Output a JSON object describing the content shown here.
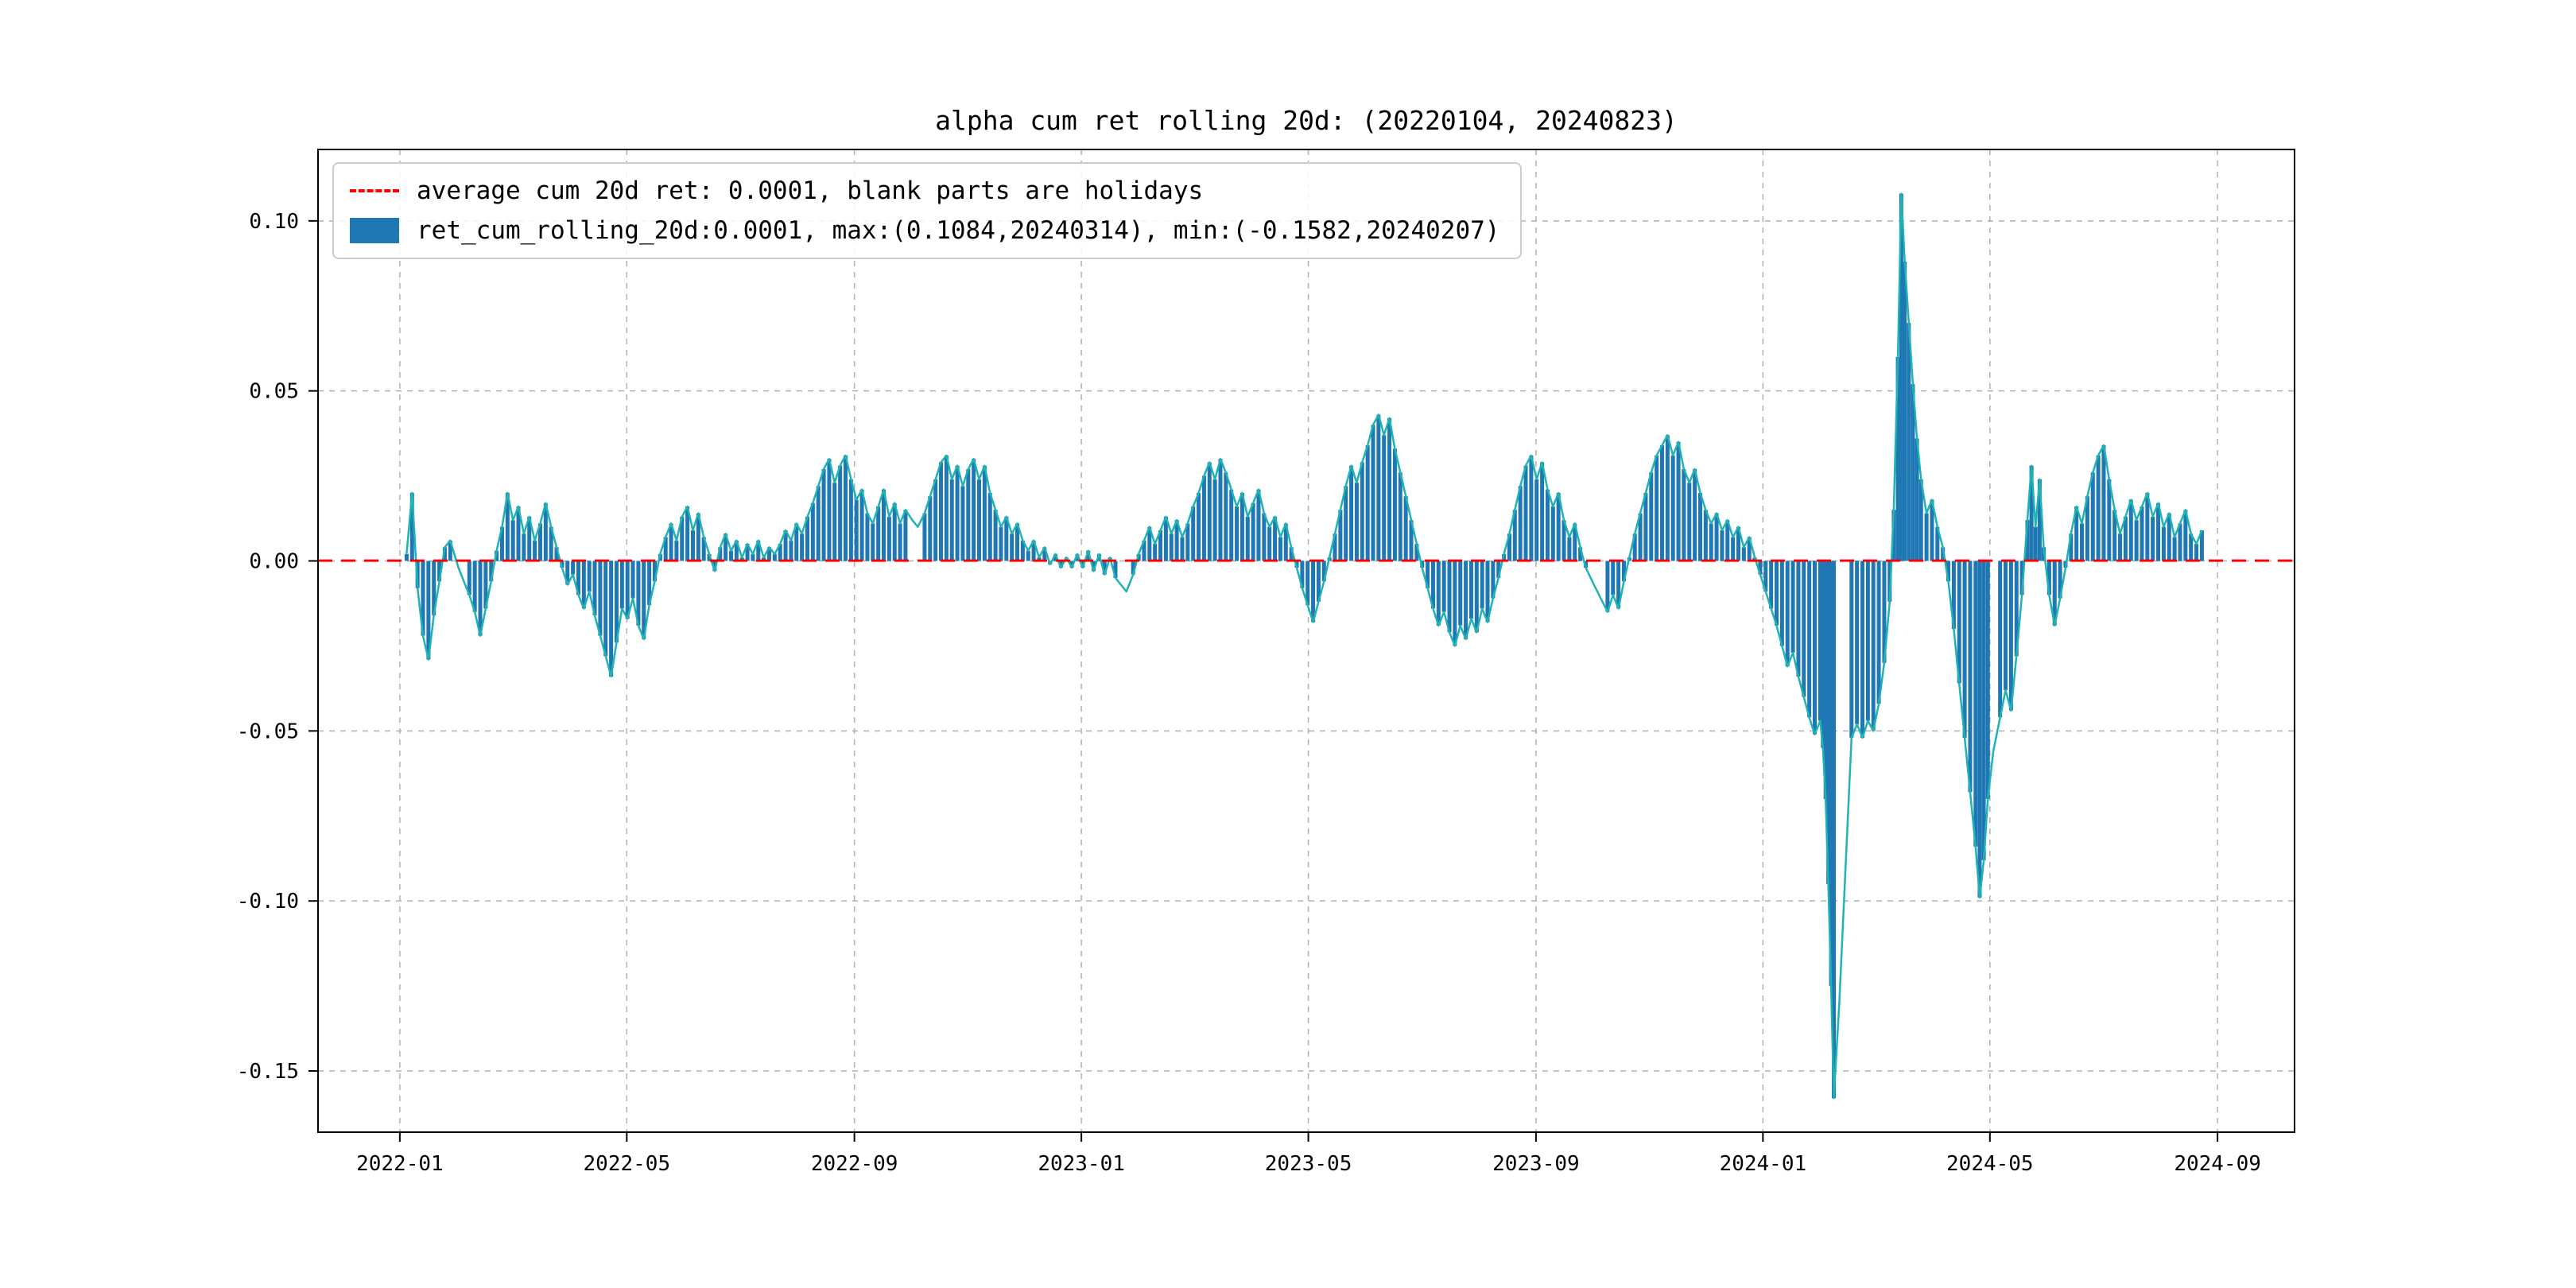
{
  "title": "alpha cum ret rolling 20d: (20220104, 20240823)",
  "legend": {
    "avg_label": "average cum 20d ret: 0.0001, blank parts are holidays",
    "series_label": "ret_cum_rolling_20d:0.0001, max:(0.1084,20240314), min:(-0.1582,20240207)"
  },
  "colors": {
    "bar": "#1f77b4",
    "line": "#1fb3b3",
    "avg_line": "#ff0000",
    "grid": "#b0b0b0",
    "axis": "#000000",
    "text": "#000000"
  },
  "chart_data": {
    "type": "bar",
    "title": "alpha cum ret rolling 20d: (20220104, 20240823)",
    "series_name": "ret_cum_rolling_20d",
    "average": 0.0001,
    "max": {
      "value": 0.1084,
      "date": "20240314"
    },
    "min": {
      "value": -0.1582,
      "date": "20240207"
    },
    "xlim": [
      2021.88,
      2024.78
    ],
    "ylim": [
      -0.168,
      0.121
    ],
    "grid": true,
    "legend_position": "upper-left",
    "x_ticks": [
      {
        "v": 2022.0,
        "label": "2022-01"
      },
      {
        "v": 2022.333,
        "label": "2022-05"
      },
      {
        "v": 2022.667,
        "label": "2022-09"
      },
      {
        "v": 2023.0,
        "label": "2023-01"
      },
      {
        "v": 2023.333,
        "label": "2023-05"
      },
      {
        "v": 2023.667,
        "label": "2023-09"
      },
      {
        "v": 2024.0,
        "label": "2024-01"
      },
      {
        "v": 2024.333,
        "label": "2024-05"
      },
      {
        "v": 2024.667,
        "label": "2024-09"
      }
    ],
    "y_ticks": [
      {
        "v": 0.1,
        "label": "0.10"
      },
      {
        "v": 0.05,
        "label": "0.05"
      },
      {
        "v": 0.0,
        "label": "0.00"
      },
      {
        "v": -0.05,
        "label": "-0.05"
      },
      {
        "v": -0.1,
        "label": "-0.10"
      },
      {
        "v": -0.15,
        "label": "-0.15"
      }
    ],
    "holiday_gaps": [
      [
        2022.078,
        2022.098
      ],
      [
        2022.746,
        2022.768
      ],
      [
        2023.053,
        2023.075
      ],
      [
        2023.745,
        2023.77
      ],
      [
        2024.106,
        2024.128
      ],
      [
        2024.333,
        2024.346
      ]
    ],
    "points": [
      [
        2022.01,
        0.002
      ],
      [
        2022.018,
        0.02
      ],
      [
        2022.026,
        -0.008
      ],
      [
        2022.034,
        -0.022
      ],
      [
        2022.042,
        -0.029
      ],
      [
        2022.05,
        -0.016
      ],
      [
        2022.058,
        -0.006
      ],
      [
        2022.066,
        0.004
      ],
      [
        2022.074,
        0.006
      ],
      [
        2022.086,
        -0.002
      ],
      [
        2022.094,
        -0.006
      ],
      [
        2022.102,
        -0.01
      ],
      [
        2022.11,
        -0.015
      ],
      [
        2022.118,
        -0.022
      ],
      [
        2022.126,
        -0.014
      ],
      [
        2022.134,
        -0.006
      ],
      [
        2022.142,
        0.003
      ],
      [
        2022.15,
        0.01
      ],
      [
        2022.158,
        0.02
      ],
      [
        2022.166,
        0.012
      ],
      [
        2022.174,
        0.016
      ],
      [
        2022.182,
        0.008
      ],
      [
        2022.19,
        0.013
      ],
      [
        2022.198,
        0.006
      ],
      [
        2022.206,
        0.011
      ],
      [
        2022.214,
        0.017
      ],
      [
        2022.222,
        0.01
      ],
      [
        2022.23,
        0.004
      ],
      [
        2022.238,
        -0.002
      ],
      [
        2022.246,
        -0.007
      ],
      [
        2022.254,
        -0.004
      ],
      [
        2022.262,
        -0.01
      ],
      [
        2022.27,
        -0.014
      ],
      [
        2022.278,
        -0.009
      ],
      [
        2022.286,
        -0.016
      ],
      [
        2022.294,
        -0.022
      ],
      [
        2022.302,
        -0.028
      ],
      [
        2022.31,
        -0.034
      ],
      [
        2022.318,
        -0.024
      ],
      [
        2022.326,
        -0.014
      ],
      [
        2022.334,
        -0.017
      ],
      [
        2022.342,
        -0.011
      ],
      [
        2022.35,
        -0.019
      ],
      [
        2022.358,
        -0.023
      ],
      [
        2022.366,
        -0.013
      ],
      [
        2022.374,
        -0.006
      ],
      [
        2022.382,
        0.002
      ],
      [
        2022.39,
        0.007
      ],
      [
        2022.398,
        0.011
      ],
      [
        2022.406,
        0.006
      ],
      [
        2022.414,
        0.013
      ],
      [
        2022.422,
        0.016
      ],
      [
        2022.43,
        0.009
      ],
      [
        2022.438,
        0.014
      ],
      [
        2022.446,
        0.007
      ],
      [
        2022.454,
        0.002
      ],
      [
        2022.462,
        -0.003
      ],
      [
        2022.47,
        0.004
      ],
      [
        2022.478,
        0.008
      ],
      [
        2022.486,
        0.003
      ],
      [
        2022.494,
        0.006
      ],
      [
        2022.502,
        0.001
      ],
      [
        2022.51,
        0.005
      ],
      [
        2022.518,
        0.002
      ],
      [
        2022.526,
        0.006
      ],
      [
        2022.534,
        0.001
      ],
      [
        2022.542,
        0.004
      ],
      [
        2022.55,
        0.002
      ],
      [
        2022.558,
        0.005
      ],
      [
        2022.566,
        0.009
      ],
      [
        2022.574,
        0.006
      ],
      [
        2022.582,
        0.011
      ],
      [
        2022.59,
        0.008
      ],
      [
        2022.598,
        0.013
      ],
      [
        2022.606,
        0.017
      ],
      [
        2022.614,
        0.022
      ],
      [
        2022.622,
        0.027
      ],
      [
        2022.63,
        0.03
      ],
      [
        2022.638,
        0.023
      ],
      [
        2022.646,
        0.028
      ],
      [
        2022.654,
        0.031
      ],
      [
        2022.662,
        0.024
      ],
      [
        2022.67,
        0.018
      ],
      [
        2022.678,
        0.021
      ],
      [
        2022.686,
        0.014
      ],
      [
        2022.694,
        0.011
      ],
      [
        2022.702,
        0.016
      ],
      [
        2022.71,
        0.021
      ],
      [
        2022.718,
        0.013
      ],
      [
        2022.726,
        0.017
      ],
      [
        2022.734,
        0.011
      ],
      [
        2022.742,
        0.015
      ],
      [
        2022.752,
        0.012
      ],
      [
        2022.76,
        0.01
      ],
      [
        2022.77,
        0.014
      ],
      [
        2022.778,
        0.019
      ],
      [
        2022.786,
        0.024
      ],
      [
        2022.794,
        0.029
      ],
      [
        2022.802,
        0.031
      ],
      [
        2022.81,
        0.024
      ],
      [
        2022.818,
        0.028
      ],
      [
        2022.826,
        0.022
      ],
      [
        2022.834,
        0.027
      ],
      [
        2022.842,
        0.03
      ],
      [
        2022.85,
        0.024
      ],
      [
        2022.858,
        0.028
      ],
      [
        2022.866,
        0.02
      ],
      [
        2022.874,
        0.015
      ],
      [
        2022.882,
        0.01
      ],
      [
        2022.89,
        0.013
      ],
      [
        2022.898,
        0.008
      ],
      [
        2022.906,
        0.011
      ],
      [
        2022.914,
        0.006
      ],
      [
        2022.922,
        0.003
      ],
      [
        2022.93,
        0.006
      ],
      [
        2022.938,
        0.001
      ],
      [
        2022.946,
        0.004
      ],
      [
        2022.954,
        -0.001
      ],
      [
        2022.962,
        0.002
      ],
      [
        2022.97,
        -0.002
      ],
      [
        2022.978,
        0.001
      ],
      [
        2022.986,
        -0.002
      ],
      [
        2022.994,
        0.002
      ],
      [
        2023.002,
        -0.002
      ],
      [
        2023.01,
        0.003
      ],
      [
        2023.018,
        -0.003
      ],
      [
        2023.026,
        0.002
      ],
      [
        2023.034,
        -0.004
      ],
      [
        2023.042,
        0.001
      ],
      [
        2023.05,
        -0.005
      ],
      [
        2023.058,
        -0.007
      ],
      [
        2023.066,
        -0.009
      ],
      [
        2023.076,
        -0.004
      ],
      [
        2023.084,
        0.002
      ],
      [
        2023.092,
        0.006
      ],
      [
        2023.1,
        0.01
      ],
      [
        2023.108,
        0.005
      ],
      [
        2023.116,
        0.009
      ],
      [
        2023.124,
        0.013
      ],
      [
        2023.132,
        0.008
      ],
      [
        2023.14,
        0.012
      ],
      [
        2023.148,
        0.007
      ],
      [
        2023.156,
        0.011
      ],
      [
        2023.164,
        0.016
      ],
      [
        2023.172,
        0.02
      ],
      [
        2023.18,
        0.025
      ],
      [
        2023.188,
        0.029
      ],
      [
        2023.196,
        0.024
      ],
      [
        2023.204,
        0.03
      ],
      [
        2023.212,
        0.026
      ],
      [
        2023.22,
        0.021
      ],
      [
        2023.228,
        0.016
      ],
      [
        2023.236,
        0.02
      ],
      [
        2023.244,
        0.013
      ],
      [
        2023.252,
        0.017
      ],
      [
        2023.26,
        0.021
      ],
      [
        2023.268,
        0.014
      ],
      [
        2023.276,
        0.01
      ],
      [
        2023.284,
        0.013
      ],
      [
        2023.292,
        0.007
      ],
      [
        2023.3,
        0.011
      ],
      [
        2023.308,
        0.004
      ],
      [
        2023.316,
        -0.002
      ],
      [
        2023.324,
        -0.008
      ],
      [
        2023.332,
        -0.013
      ],
      [
        2023.34,
        -0.018
      ],
      [
        2023.348,
        -0.012
      ],
      [
        2023.356,
        -0.006
      ],
      [
        2023.364,
        0.001
      ],
      [
        2023.372,
        0.008
      ],
      [
        2023.38,
        0.015
      ],
      [
        2023.388,
        0.022
      ],
      [
        2023.396,
        0.028
      ],
      [
        2023.404,
        0.023
      ],
      [
        2023.412,
        0.029
      ],
      [
        2023.42,
        0.034
      ],
      [
        2023.428,
        0.04
      ],
      [
        2023.436,
        0.043
      ],
      [
        2023.444,
        0.037
      ],
      [
        2023.452,
        0.042
      ],
      [
        2023.46,
        0.033
      ],
      [
        2023.468,
        0.026
      ],
      [
        2023.476,
        0.019
      ],
      [
        2023.484,
        0.012
      ],
      [
        2023.492,
        0.005
      ],
      [
        2023.5,
        -0.002
      ],
      [
        2023.508,
        -0.008
      ],
      [
        2023.516,
        -0.014
      ],
      [
        2023.524,
        -0.019
      ],
      [
        2023.532,
        -0.015
      ],
      [
        2023.54,
        -0.021
      ],
      [
        2023.548,
        -0.025
      ],
      [
        2023.556,
        -0.019
      ],
      [
        2023.564,
        -0.023
      ],
      [
        2023.572,
        -0.017
      ],
      [
        2023.58,
        -0.021
      ],
      [
        2023.588,
        -0.014
      ],
      [
        2023.596,
        -0.018
      ],
      [
        2023.604,
        -0.011
      ],
      [
        2023.612,
        -0.005
      ],
      [
        2023.62,
        0.002
      ],
      [
        2023.628,
        0.008
      ],
      [
        2023.636,
        0.015
      ],
      [
        2023.644,
        0.022
      ],
      [
        2023.652,
        0.028
      ],
      [
        2023.66,
        0.031
      ],
      [
        2023.668,
        0.024
      ],
      [
        2023.676,
        0.029
      ],
      [
        2023.684,
        0.021
      ],
      [
        2023.692,
        0.016
      ],
      [
        2023.7,
        0.02
      ],
      [
        2023.708,
        0.012
      ],
      [
        2023.716,
        0.007
      ],
      [
        2023.724,
        0.011
      ],
      [
        2023.732,
        0.004
      ],
      [
        2023.74,
        -0.002
      ],
      [
        2023.752,
        -0.007
      ],
      [
        2023.762,
        -0.011
      ],
      [
        2023.772,
        -0.015
      ],
      [
        2023.78,
        -0.01
      ],
      [
        2023.788,
        -0.014
      ],
      [
        2023.796,
        -0.006
      ],
      [
        2023.804,
        0.001
      ],
      [
        2023.812,
        0.008
      ],
      [
        2023.82,
        0.014
      ],
      [
        2023.828,
        0.02
      ],
      [
        2023.836,
        0.026
      ],
      [
        2023.844,
        0.031
      ],
      [
        2023.852,
        0.034
      ],
      [
        2023.86,
        0.037
      ],
      [
        2023.868,
        0.031
      ],
      [
        2023.876,
        0.035
      ],
      [
        2023.884,
        0.027
      ],
      [
        2023.892,
        0.023
      ],
      [
        2023.9,
        0.027
      ],
      [
        2023.908,
        0.02
      ],
      [
        2023.916,
        0.015
      ],
      [
        2023.924,
        0.011
      ],
      [
        2023.932,
        0.014
      ],
      [
        2023.94,
        0.009
      ],
      [
        2023.948,
        0.012
      ],
      [
        2023.956,
        0.007
      ],
      [
        2023.964,
        0.01
      ],
      [
        2023.972,
        0.004
      ],
      [
        2023.98,
        0.007
      ],
      [
        2023.988,
        0.001
      ],
      [
        2023.996,
        -0.004
      ],
      [
        2024.004,
        -0.009
      ],
      [
        2024.012,
        -0.014
      ],
      [
        2024.02,
        -0.019
      ],
      [
        2024.028,
        -0.025
      ],
      [
        2024.036,
        -0.031
      ],
      [
        2024.044,
        -0.027
      ],
      [
        2024.052,
        -0.034
      ],
      [
        2024.06,
        -0.04
      ],
      [
        2024.068,
        -0.046
      ],
      [
        2024.076,
        -0.051
      ],
      [
        2024.084,
        -0.047
      ],
      [
        2024.088,
        -0.055
      ],
      [
        2024.092,
        -0.07
      ],
      [
        2024.096,
        -0.095
      ],
      [
        2024.1,
        -0.125
      ],
      [
        2024.104,
        -0.158
      ],
      [
        2024.112,
        -0.13
      ],
      [
        2024.13,
        -0.052
      ],
      [
        2024.138,
        -0.048
      ],
      [
        2024.146,
        -0.052
      ],
      [
        2024.154,
        -0.047
      ],
      [
        2024.162,
        -0.05
      ],
      [
        2024.17,
        -0.042
      ],
      [
        2024.178,
        -0.03
      ],
      [
        2024.186,
        -0.012
      ],
      [
        2024.192,
        0.015
      ],
      [
        2024.198,
        0.06
      ],
      [
        2024.203,
        0.108
      ],
      [
        2024.208,
        0.088
      ],
      [
        2024.214,
        0.07
      ],
      [
        2024.22,
        0.052
      ],
      [
        2024.226,
        0.036
      ],
      [
        2024.232,
        0.024
      ],
      [
        2024.24,
        0.014
      ],
      [
        2024.248,
        0.018
      ],
      [
        2024.256,
        0.01
      ],
      [
        2024.264,
        0.004
      ],
      [
        2024.272,
        -0.006
      ],
      [
        2024.28,
        -0.02
      ],
      [
        2024.288,
        -0.036
      ],
      [
        2024.296,
        -0.052
      ],
      [
        2024.304,
        -0.068
      ],
      [
        2024.312,
        -0.084
      ],
      [
        2024.318,
        -0.099
      ],
      [
        2024.324,
        -0.088
      ],
      [
        2024.33,
        -0.07
      ],
      [
        2024.338,
        -0.056
      ],
      [
        2024.348,
        -0.046
      ],
      [
        2024.356,
        -0.038
      ],
      [
        2024.364,
        -0.044
      ],
      [
        2024.372,
        -0.028
      ],
      [
        2024.38,
        -0.01
      ],
      [
        2024.388,
        0.012
      ],
      [
        2024.394,
        0.028
      ],
      [
        2024.4,
        0.01
      ],
      [
        2024.406,
        0.024
      ],
      [
        2024.412,
        0.004
      ],
      [
        2024.42,
        -0.01
      ],
      [
        2024.428,
        -0.019
      ],
      [
        2024.436,
        -0.011
      ],
      [
        2024.444,
        -0.002
      ],
      [
        2024.452,
        0.008
      ],
      [
        2024.46,
        0.016
      ],
      [
        2024.468,
        0.011
      ],
      [
        2024.476,
        0.019
      ],
      [
        2024.484,
        0.026
      ],
      [
        2024.492,
        0.031
      ],
      [
        2024.5,
        0.034
      ],
      [
        2024.508,
        0.024
      ],
      [
        2024.516,
        0.015
      ],
      [
        2024.524,
        0.008
      ],
      [
        2024.532,
        0.013
      ],
      [
        2024.54,
        0.018
      ],
      [
        2024.548,
        0.012
      ],
      [
        2024.556,
        0.016
      ],
      [
        2024.564,
        0.02
      ],
      [
        2024.572,
        0.013
      ],
      [
        2024.58,
        0.017
      ],
      [
        2024.588,
        0.01
      ],
      [
        2024.596,
        0.014
      ],
      [
        2024.604,
        0.007
      ],
      [
        2024.612,
        0.011
      ],
      [
        2024.62,
        0.015
      ],
      [
        2024.628,
        0.008
      ],
      [
        2024.636,
        0.005
      ],
      [
        2024.644,
        0.009
      ]
    ]
  }
}
